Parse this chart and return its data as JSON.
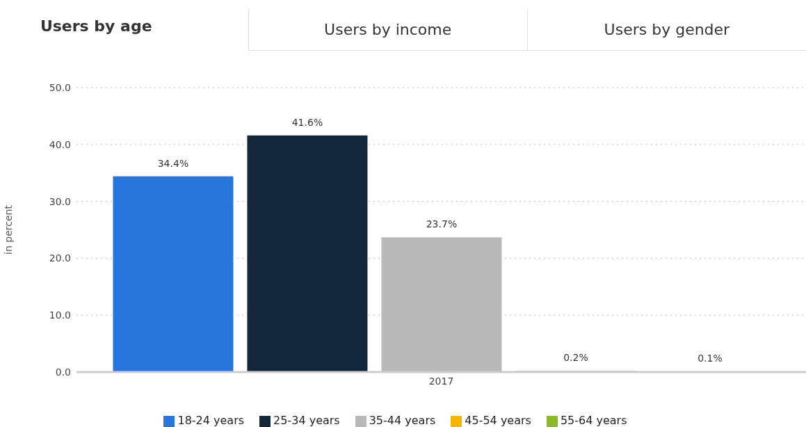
{
  "chart_data": {
    "type": "bar",
    "annotations": [
      "Users by age",
      "Users by income",
      "Users by gender"
    ],
    "ylabel": "in percent",
    "categories": [
      "2017"
    ],
    "series": [
      {
        "name": "18-24 years",
        "color": "#2876dd",
        "values": [
          34.4
        ],
        "value_labels": [
          "34.4%"
        ]
      },
      {
        "name": "25-34 years",
        "color": "#13263b",
        "values": [
          41.6
        ],
        "value_labels": [
          "41.6%"
        ]
      },
      {
        "name": "35-44 years",
        "color": "#b9b9b9",
        "values": [
          23.7
        ],
        "value_labels": [
          "23.7%"
        ]
      },
      {
        "name": "45-54 years",
        "color": "#f8b500",
        "values": [
          0.2
        ],
        "value_labels": [
          "0.2%"
        ]
      },
      {
        "name": "55-64 years",
        "color": "#88bb25",
        "values": [
          0.1
        ],
        "value_labels": [
          "0.1%"
        ]
      }
    ],
    "ylim": [
      0,
      50
    ],
    "yticks": [
      {
        "value": 0,
        "label": "0.0"
      },
      {
        "value": 10,
        "label": "10.0"
      },
      {
        "value": 20,
        "label": "20.0"
      },
      {
        "value": 30,
        "label": "30.0"
      },
      {
        "value": 40,
        "label": "40.0"
      },
      {
        "value": 50,
        "label": "50.0"
      }
    ],
    "grid": "y",
    "legend": "bottom"
  }
}
